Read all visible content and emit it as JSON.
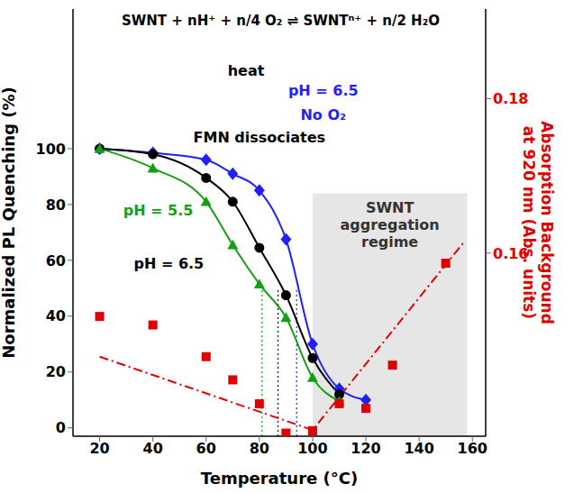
{
  "chart_data": {
    "type": "line",
    "x_label": "Temperature (°C)",
    "y_label": "Normalized PL Quenching (%)",
    "y2_label": "Absorption Background at 920 nm (Abs. units)",
    "xlim": [
      10,
      165
    ],
    "xticks": [
      20,
      40,
      60,
      80,
      100,
      120,
      140,
      160
    ],
    "ylim": [
      -3,
      150
    ],
    "yticks": [
      0,
      20,
      40,
      60,
      80,
      100
    ],
    "y2lim": [
      0.1363,
      0.1916
    ],
    "y2ticks": [
      0.16,
      0.18
    ],
    "series": [
      {
        "type": "line",
        "color": "#1f1fff",
        "marker": "diamond",
        "line_style": "solid",
        "x": [
          20,
          40,
          60,
          70,
          80,
          90,
          100,
          110,
          120
        ],
        "values": [
          100,
          98.5,
          96,
          91,
          85,
          67.5,
          30,
          14,
          10
        ],
        "half_quench": {
          "x": 94,
          "y": 50
        }
      },
      {
        "type": "line",
        "color": "#000000",
        "marker": "circle",
        "line_style": "solid",
        "x": [
          20,
          40,
          60,
          70,
          80,
          90,
          100,
          110
        ],
        "values": [
          100,
          98,
          89.5,
          81,
          64.5,
          47.5,
          25,
          12
        ],
        "half_quench": {
          "x": 87,
          "y": 50
        }
      },
      {
        "type": "line",
        "color": "#14a014",
        "marker": "triangle",
        "line_style": "solid",
        "x": [
          20,
          40,
          60,
          70,
          80,
          90,
          100,
          110
        ],
        "values": [
          100,
          93,
          81,
          65.5,
          51.5,
          39.5,
          18,
          9.5
        ],
        "half_quench": {
          "x": 81,
          "y": 50
        }
      },
      {
        "type": "scatter",
        "axis": "y2",
        "color": "#e00000",
        "marker": "square",
        "x": [
          20,
          40,
          60,
          70,
          80,
          90,
          100,
          110,
          120,
          130,
          150
        ],
        "values": [
          0.1518,
          0.1507,
          0.1466,
          0.1436,
          0.1405,
          0.1367,
          0.137,
          0.1405,
          0.1399,
          0.1455,
          0.1587
        ]
      },
      {
        "type": "line",
        "axis": "y2",
        "color": "#e00000",
        "marker": "none",
        "line_style": "dashdot",
        "x": [
          20,
          100,
          157
        ],
        "values": [
          0.1466,
          0.1371,
          0.1615
        ]
      }
    ],
    "shaded_region": {
      "x": [
        100,
        158
      ],
      "y": [
        -3,
        84
      ],
      "label": "SWNT aggregation regime",
      "color": "#e6e6e6"
    },
    "annotations": [
      {
        "text": "SWNT + nH⁺ + n/4 O₂ ⇌ SWNTⁿ⁺ + n/2 H₂O",
        "x": 88,
        "y": 146,
        "color": "#000000"
      },
      {
        "text": "heat",
        "x": 75,
        "y": 128,
        "color": "#000000"
      },
      {
        "text": "FMN dissociates",
        "x": 80,
        "y": 104,
        "color": "#000000"
      },
      {
        "text": "pH = 6.5",
        "x": 104,
        "y": 121,
        "color": "#1f1fff"
      },
      {
        "text": "No O₂",
        "x": 104,
        "y": 112,
        "color": "#1f1fff"
      },
      {
        "text": "pH = 5.5",
        "x": 42,
        "y": 78,
        "color": "#14a014"
      },
      {
        "text": "pH = 6.5",
        "x": 46,
        "y": 59,
        "color": "#000000"
      }
    ]
  }
}
